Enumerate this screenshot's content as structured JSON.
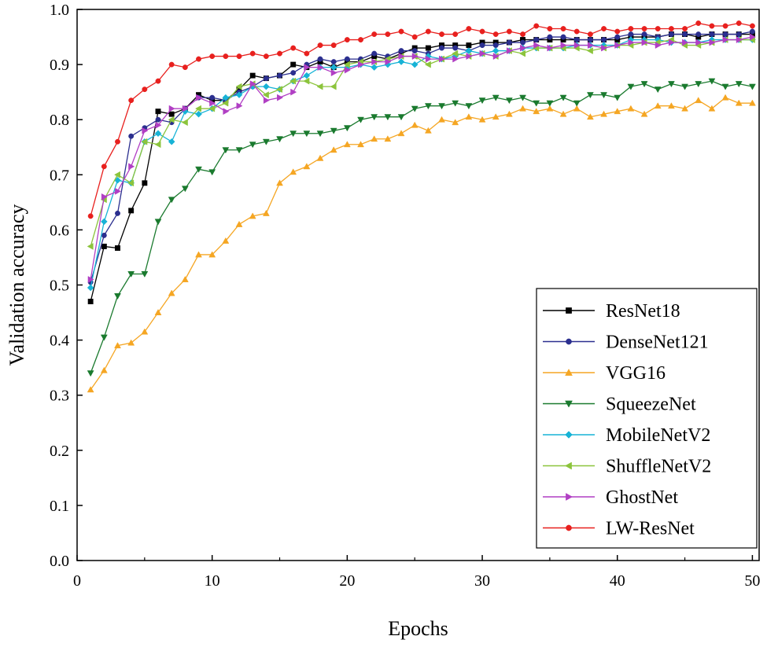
{
  "chart_data": {
    "type": "line",
    "title": "",
    "xlabel": "Epochs",
    "ylabel": "Validation accuracy",
    "xlim": [
      0,
      50.5
    ],
    "ylim": [
      0,
      1.0
    ],
    "x_ticks": [
      0,
      10,
      20,
      30,
      40,
      50
    ],
    "x_tick_labels": [
      "0",
      "10",
      "20",
      "30",
      "40",
      "50"
    ],
    "y_ticks": [
      0,
      0.1,
      0.2,
      0.3,
      0.4,
      0.5,
      0.6,
      0.7,
      0.8,
      0.9,
      1.0
    ],
    "y_tick_labels": [
      "0.0",
      "0.1",
      "0.2",
      "0.3",
      "0.4",
      "0.5",
      "0.6",
      "0.7",
      "0.8",
      "0.9",
      "1.0"
    ],
    "grid": false,
    "legend_position": "bottom-right",
    "x": [
      1,
      2,
      3,
      4,
      5,
      6,
      7,
      8,
      9,
      10,
      11,
      12,
      13,
      14,
      15,
      16,
      17,
      18,
      19,
      20,
      21,
      22,
      23,
      24,
      25,
      26,
      27,
      28,
      29,
      30,
      31,
      32,
      33,
      34,
      35,
      36,
      37,
      38,
      39,
      40,
      41,
      42,
      43,
      44,
      45,
      46,
      47,
      48,
      49,
      50
    ],
    "series": [
      {
        "name": "ResNet18",
        "color": "#000000",
        "marker": "square",
        "values": [
          0.47,
          0.57,
          0.567,
          0.635,
          0.685,
          0.815,
          0.81,
          0.82,
          0.845,
          0.835,
          0.835,
          0.855,
          0.88,
          0.875,
          0.88,
          0.9,
          0.895,
          0.905,
          0.895,
          0.905,
          0.905,
          0.915,
          0.91,
          0.92,
          0.93,
          0.93,
          0.935,
          0.935,
          0.935,
          0.94,
          0.94,
          0.94,
          0.945,
          0.945,
          0.945,
          0.945,
          0.945,
          0.945,
          0.945,
          0.945,
          0.95,
          0.95,
          0.95,
          0.955,
          0.955,
          0.95,
          0.955,
          0.955,
          0.955,
          0.955
        ]
      },
      {
        "name": "DenseNet121",
        "color": "#2b2f8f",
        "marker": "circle",
        "values": [
          0.505,
          0.59,
          0.63,
          0.77,
          0.785,
          0.8,
          0.795,
          0.82,
          0.84,
          0.84,
          0.835,
          0.85,
          0.86,
          0.875,
          0.88,
          0.885,
          0.9,
          0.91,
          0.905,
          0.91,
          0.91,
          0.92,
          0.915,
          0.925,
          0.925,
          0.92,
          0.93,
          0.93,
          0.925,
          0.935,
          0.935,
          0.94,
          0.94,
          0.945,
          0.95,
          0.95,
          0.945,
          0.945,
          0.945,
          0.95,
          0.955,
          0.955,
          0.95,
          0.955,
          0.955,
          0.955,
          0.955,
          0.955,
          0.955,
          0.96
        ]
      },
      {
        "name": "VGG16",
        "color": "#f5a623",
        "marker": "triangle-up",
        "values": [
          0.31,
          0.345,
          0.39,
          0.395,
          0.415,
          0.45,
          0.485,
          0.51,
          0.555,
          0.555,
          0.58,
          0.61,
          0.625,
          0.63,
          0.685,
          0.705,
          0.715,
          0.73,
          0.745,
          0.755,
          0.755,
          0.765,
          0.765,
          0.775,
          0.79,
          0.78,
          0.8,
          0.795,
          0.805,
          0.8,
          0.805,
          0.81,
          0.82,
          0.815,
          0.82,
          0.81,
          0.82,
          0.805,
          0.81,
          0.815,
          0.82,
          0.81,
          0.825,
          0.825,
          0.82,
          0.835,
          0.82,
          0.84,
          0.83,
          0.83
        ]
      },
      {
        "name": "SqueezeNet",
        "color": "#1a7a2e",
        "marker": "triangle-down",
        "values": [
          0.34,
          0.405,
          0.48,
          0.52,
          0.52,
          0.615,
          0.655,
          0.675,
          0.71,
          0.705,
          0.745,
          0.745,
          0.755,
          0.76,
          0.765,
          0.775,
          0.775,
          0.775,
          0.78,
          0.785,
          0.8,
          0.805,
          0.805,
          0.805,
          0.82,
          0.825,
          0.825,
          0.83,
          0.825,
          0.835,
          0.84,
          0.835,
          0.84,
          0.83,
          0.83,
          0.84,
          0.83,
          0.845,
          0.845,
          0.84,
          0.86,
          0.865,
          0.855,
          0.865,
          0.86,
          0.865,
          0.87,
          0.86,
          0.865,
          0.86
        ]
      },
      {
        "name": "MobileNetV2",
        "color": "#17b3d6",
        "marker": "diamond",
        "values": [
          0.495,
          0.615,
          0.69,
          0.685,
          0.76,
          0.775,
          0.76,
          0.815,
          0.81,
          0.82,
          0.84,
          0.845,
          0.86,
          0.86,
          0.855,
          0.87,
          0.88,
          0.895,
          0.895,
          0.895,
          0.9,
          0.895,
          0.9,
          0.905,
          0.9,
          0.915,
          0.91,
          0.915,
          0.925,
          0.92,
          0.925,
          0.925,
          0.93,
          0.93,
          0.93,
          0.93,
          0.935,
          0.935,
          0.935,
          0.935,
          0.945,
          0.945,
          0.945,
          0.94,
          0.94,
          0.94,
          0.945,
          0.945,
          0.945,
          0.945
        ]
      },
      {
        "name": "ShuffleNetV2",
        "color": "#8cc43c",
        "marker": "triangle-left",
        "values": [
          0.57,
          0.655,
          0.7,
          0.685,
          0.76,
          0.755,
          0.8,
          0.795,
          0.82,
          0.82,
          0.83,
          0.86,
          0.865,
          0.845,
          0.855,
          0.87,
          0.87,
          0.86,
          0.86,
          0.9,
          0.905,
          0.905,
          0.91,
          0.915,
          0.915,
          0.9,
          0.91,
          0.92,
          0.915,
          0.92,
          0.915,
          0.925,
          0.92,
          0.93,
          0.93,
          0.93,
          0.93,
          0.925,
          0.93,
          0.935,
          0.935,
          0.94,
          0.94,
          0.945,
          0.935,
          0.935,
          0.94,
          0.945,
          0.945,
          0.945
        ]
      },
      {
        "name": "GhostNet",
        "color": "#b13fc4",
        "marker": "triangle-right",
        "values": [
          0.51,
          0.66,
          0.67,
          0.715,
          0.78,
          0.79,
          0.82,
          0.82,
          0.84,
          0.83,
          0.815,
          0.825,
          0.865,
          0.835,
          0.84,
          0.85,
          0.895,
          0.895,
          0.885,
          0.89,
          0.9,
          0.905,
          0.905,
          0.915,
          0.915,
          0.91,
          0.91,
          0.91,
          0.915,
          0.92,
          0.915,
          0.925,
          0.93,
          0.935,
          0.93,
          0.935,
          0.935,
          0.935,
          0.93,
          0.935,
          0.94,
          0.94,
          0.935,
          0.94,
          0.94,
          0.94,
          0.94,
          0.945,
          0.945,
          0.95
        ]
      },
      {
        "name": "LW-ResNet",
        "color": "#e8201e",
        "marker": "circle",
        "values": [
          0.625,
          0.715,
          0.76,
          0.835,
          0.855,
          0.87,
          0.9,
          0.895,
          0.91,
          0.915,
          0.915,
          0.915,
          0.92,
          0.915,
          0.92,
          0.93,
          0.92,
          0.935,
          0.935,
          0.945,
          0.945,
          0.955,
          0.955,
          0.96,
          0.95,
          0.96,
          0.955,
          0.955,
          0.965,
          0.96,
          0.955,
          0.96,
          0.955,
          0.97,
          0.965,
          0.965,
          0.96,
          0.955,
          0.965,
          0.96,
          0.965,
          0.965,
          0.965,
          0.965,
          0.965,
          0.975,
          0.97,
          0.97,
          0.975,
          0.97
        ]
      }
    ]
  }
}
